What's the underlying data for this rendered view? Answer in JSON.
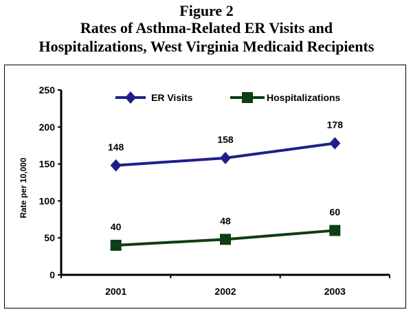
{
  "figure_label": "Figure 2",
  "chart_data": {
    "type": "line",
    "title": "Rates of Asthma-Related ER Visits and Hospitalizations, West Virginia Medicaid Recipients",
    "title_lines": [
      "Rates of Asthma-Related ER Visits and",
      "Hospitalizations, West Virginia Medicaid Recipients"
    ],
    "categories": [
      "2001",
      "2002",
      "2003"
    ],
    "xlabel": "",
    "ylabel": "Rate per 10,000",
    "ylim": [
      0,
      250
    ],
    "yticks": [
      0,
      50,
      100,
      150,
      200,
      250
    ],
    "grid": false,
    "legend": "top",
    "series": [
      {
        "name": "ER Visits",
        "values": [
          148,
          158,
          178
        ],
        "color": "#1f1f8c",
        "marker": "diamond"
      },
      {
        "name": "Hospitalizations",
        "values": [
          40,
          48,
          60
        ],
        "color": "#0f3d14",
        "marker": "square"
      }
    ]
  }
}
